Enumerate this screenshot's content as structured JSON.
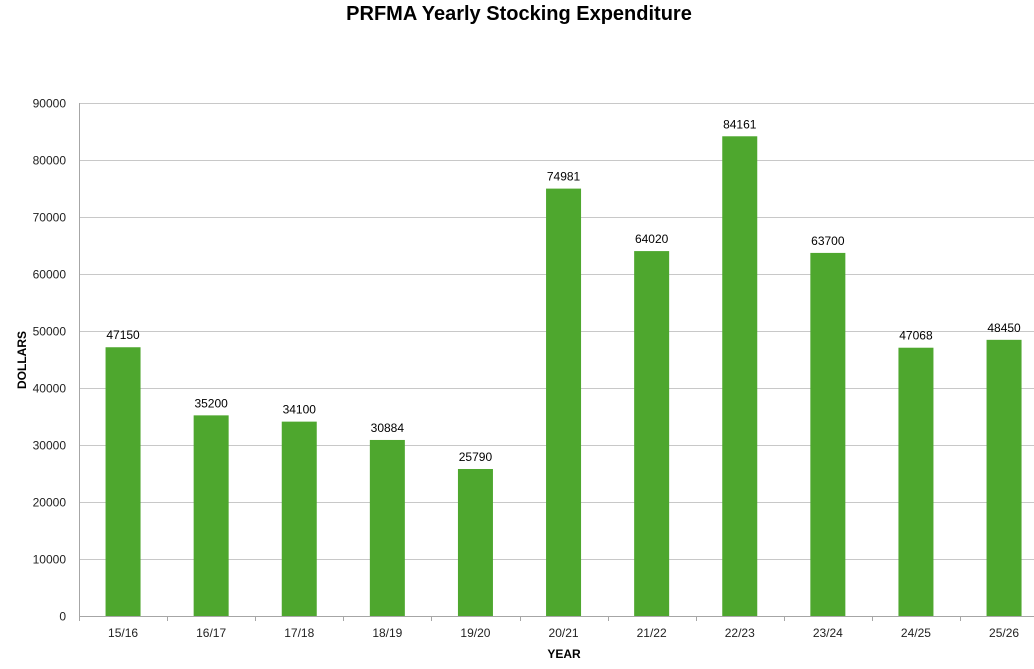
{
  "chart_data": {
    "type": "bar",
    "title": "PRFMA Yearly Stocking Expenditure",
    "xlabel": "YEAR",
    "ylabel": "DOLLARS",
    "categories": [
      "15/16",
      "16/17",
      "17/18",
      "18/19",
      "19/20",
      "20/21",
      "21/22",
      "22/23",
      "23/24",
      "24/25",
      "25/26"
    ],
    "values": [
      47150,
      35200,
      34100,
      30884,
      25790,
      74981,
      64020,
      84161,
      63700,
      47068,
      48450
    ],
    "ylim": [
      0,
      90000
    ],
    "yticks": [
      0,
      10000,
      20000,
      30000,
      40000,
      50000,
      60000,
      70000,
      80000,
      90000
    ],
    "grid": true,
    "legend": "none",
    "bar_color": "#4ea72e"
  }
}
